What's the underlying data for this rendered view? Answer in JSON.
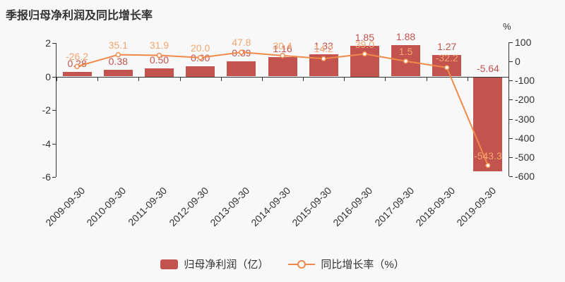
{
  "title": "季报归母净利润及同比增长率",
  "legend": {
    "bar_label": "归母净利润（亿）",
    "line_label": "同比增长率（%）"
  },
  "colors": {
    "background": "#f8f8f8",
    "title": "#333333",
    "bar": "#c2534e",
    "bar_label": "#c2534e",
    "line": "#f08a4b",
    "line_label": "#f4a76f",
    "marker_fill": "#ffffff",
    "axis": "#333333"
  },
  "chart_data": {
    "type": "bar",
    "title": "季报归母净利润及同比增长率",
    "categories": [
      "2009-09-30",
      "2010-09-30",
      "2011-09-30",
      "2012-09-30",
      "2013-09-30",
      "2014-09-30",
      "2015-09-30",
      "2016-09-30",
      "2017-09-30",
      "2018-09-30",
      "2019-09-30"
    ],
    "series": [
      {
        "name": "归母净利润（亿）",
        "type": "bar",
        "yaxis": "left",
        "values": [
          0.28,
          0.38,
          0.5,
          0.6,
          0.89,
          1.16,
          1.33,
          1.85,
          1.88,
          1.27,
          -5.64
        ],
        "labels": [
          "0.28",
          "0.38",
          "0.50",
          "0.60",
          "0.89",
          "1.16",
          "1.33",
          "1.85",
          "1.88",
          "1.27",
          "-5.64"
        ]
      },
      {
        "name": "同比增长率（%）",
        "type": "line",
        "yaxis": "right",
        "values": [
          -26.2,
          35.1,
          31.9,
          20.0,
          47.8,
          30.4,
          14.2,
          39.0,
          1.5,
          -32.2,
          -543.3
        ],
        "labels": [
          "-26.2",
          "35.1",
          "31.9",
          "20.0",
          "47.8",
          "30.4",
          "14.2",
          "39.0",
          "1.5",
          "-32.2",
          "-543.3"
        ]
      }
    ],
    "left_axis": {
      "ticks": [
        "2",
        "0",
        "-2",
        "-4",
        "-6"
      ],
      "min": -6,
      "max": 2
    },
    "right_axis": {
      "unit": "%",
      "ticks": [
        "100",
        "0",
        "-100",
        "-200",
        "-300",
        "-400",
        "-500",
        "-600"
      ],
      "min": -600,
      "max": 100
    },
    "legend_position": "bottom",
    "grid": false,
    "x_label_rotation": 45
  }
}
